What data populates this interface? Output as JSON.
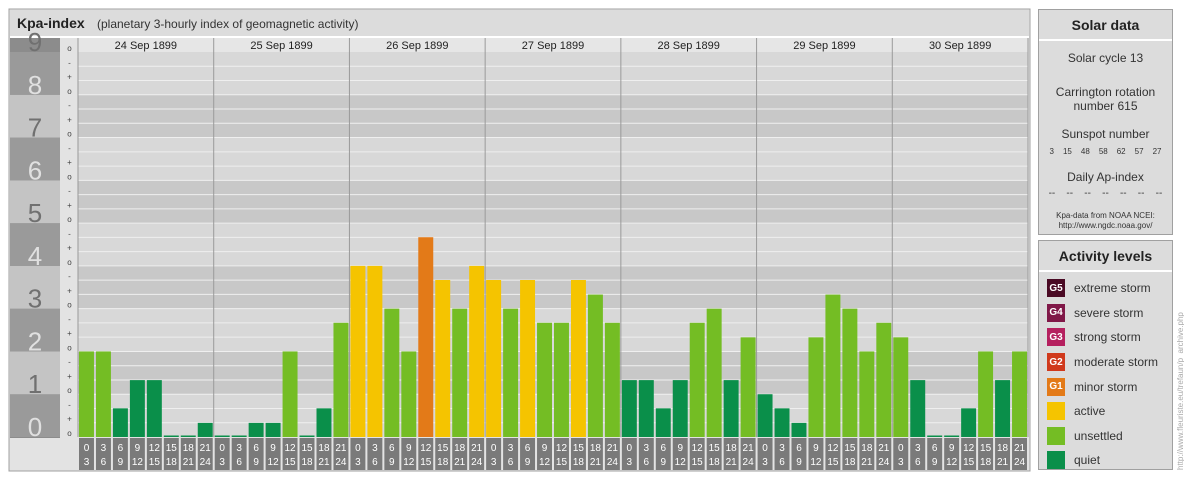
{
  "chart_data": {
    "type": "bar",
    "title": "Kpa-index",
    "subtitle": "(planetary 3-hourly index of geomagnetic activity)",
    "ylim": [
      0,
      9
    ],
    "y_ticks": [
      "0",
      "1",
      "2",
      "3",
      "4",
      "5",
      "6",
      "7",
      "8",
      "9"
    ],
    "minor_tick_marks": [
      "o",
      "+",
      "-"
    ],
    "days": [
      "24 Sep 1899",
      "25 Sep 1899",
      "26 Sep 1899",
      "27 Sep 1899",
      "28 Sep 1899",
      "29 Sep 1899",
      "30 Sep 1899"
    ],
    "interval_start": [
      "0",
      "3",
      "6",
      "9",
      "12",
      "15",
      "18",
      "21"
    ],
    "interval_end": [
      "3",
      "6",
      "9",
      "12",
      "15",
      "18",
      "21",
      "24"
    ],
    "values": [
      2.0,
      2.0,
      0.67,
      1.33,
      1.33,
      0.0,
      0.0,
      0.33,
      0.0,
      0.0,
      0.33,
      0.33,
      2.0,
      0.0,
      0.67,
      2.67,
      4.0,
      4.0,
      3.0,
      2.0,
      4.67,
      3.67,
      3.0,
      4.0,
      3.67,
      3.0,
      3.67,
      2.67,
      2.67,
      3.67,
      3.33,
      2.67,
      1.33,
      1.33,
      0.67,
      1.33,
      2.67,
      3.0,
      1.33,
      2.33,
      1.0,
      0.67,
      0.33,
      2.33,
      3.33,
      3.0,
      2.0,
      2.67,
      2.33,
      1.33,
      0.0,
      0.0,
      0.67,
      2.0,
      1.33,
      2.0
    ],
    "colors": {
      "quiet": "#0a8f4a",
      "unsettled": "#74bd24",
      "active": "#f5c400",
      "g1": "#e37a18",
      "g2": "#d0391c",
      "g3": "#b5205f",
      "g4": "#801848",
      "g5": "#4a0a24"
    }
  },
  "solar": {
    "title": "Solar data",
    "cycle": "Solar cycle 13",
    "carrington": "Carrington rotation number 615",
    "sunspot_label": "Sunspot number",
    "sunspots": [
      "3",
      "15",
      "48",
      "58",
      "62",
      "57",
      "27"
    ],
    "ap_label": "Daily Ap-index",
    "ap_values": [
      "--",
      "--",
      "--",
      "--",
      "--",
      "--",
      "--"
    ],
    "source_line1": "Kpa-data from NOAA NCEI:",
    "source_line2": "http://www.ngdc.noaa.gov/"
  },
  "activity": {
    "title": "Activity levels",
    "items": [
      {
        "code": "G5",
        "label": "extreme storm",
        "color": "#4a0a24"
      },
      {
        "code": "G4",
        "label": "severe storm",
        "color": "#801848"
      },
      {
        "code": "G3",
        "label": "strong storm",
        "color": "#b5205f"
      },
      {
        "code": "G2",
        "label": "moderate storm",
        "color": "#d0391c"
      },
      {
        "code": "G1",
        "label": "minor storm",
        "color": "#e37a18"
      },
      {
        "code": "",
        "label": "active",
        "color": "#f5c400"
      },
      {
        "code": "",
        "label": "unsettled",
        "color": "#74bd24"
      },
      {
        "code": "",
        "label": "quiet",
        "color": "#0a8f4a"
      }
    ]
  },
  "watermark": "http://www.fleuriste.eu/trefaun/p_archive.php"
}
